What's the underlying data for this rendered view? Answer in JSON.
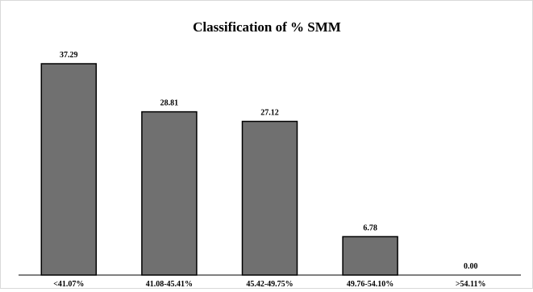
{
  "chart_data": {
    "type": "bar",
    "title": "Classification of % SMM",
    "categories": [
      "<41.07%",
      "41.08-45.41%",
      "45.42-49.75%",
      "49.76-54.10%",
      ">54.11%"
    ],
    "values": [
      37.29,
      28.81,
      27.12,
      6.78,
      0.0
    ],
    "value_labels": [
      "37.29",
      "28.81",
      "27.12",
      "6.78",
      "0.00"
    ],
    "xlabel": "",
    "ylabel": "",
    "ylim": [
      0,
      40
    ],
    "grid": false,
    "legend": "none",
    "colors": {
      "bar_fill": "#707070",
      "bar_stroke": "#000000",
      "axis": "#000000",
      "frame": "#d9d9d9"
    }
  }
}
